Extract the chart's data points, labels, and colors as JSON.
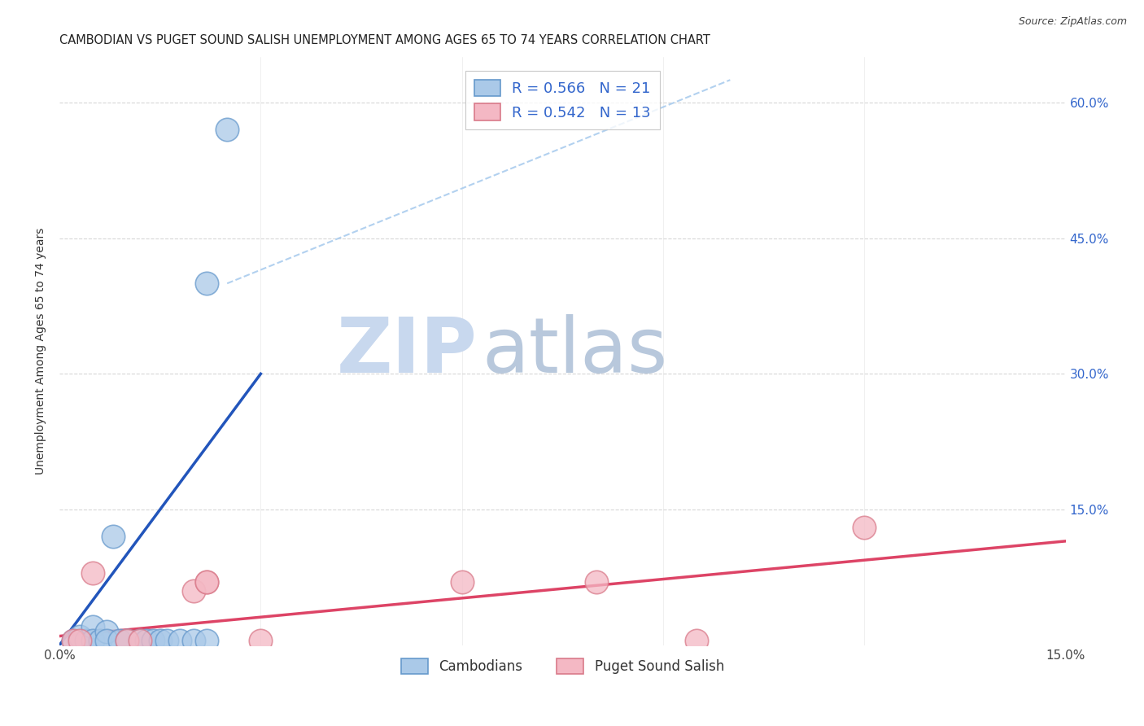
{
  "title": "CAMBODIAN VS PUGET SOUND SALISH UNEMPLOYMENT AMONG AGES 65 TO 74 YEARS CORRELATION CHART",
  "source": "Source: ZipAtlas.com",
  "ylabel": "Unemployment Among Ages 65 to 74 years",
  "xlim": [
    0.0,
    0.15
  ],
  "ylim": [
    0.0,
    0.65
  ],
  "xtick_positions": [
    0.0,
    0.03,
    0.06,
    0.09,
    0.12,
    0.15
  ],
  "xtick_labels": [
    "0.0%",
    "",
    "",
    "",
    "",
    "15.0%"
  ],
  "ytick_positions": [
    0.0,
    0.15,
    0.3,
    0.45,
    0.6
  ],
  "ytick_labels_right": [
    "",
    "15.0%",
    "30.0%",
    "45.0%",
    "60.0%"
  ],
  "cambodian_scatter_x": [
    0.002,
    0.003,
    0.004,
    0.005,
    0.005,
    0.006,
    0.007,
    0.007,
    0.008,
    0.009,
    0.01,
    0.012,
    0.013,
    0.014,
    0.015,
    0.016,
    0.018,
    0.02,
    0.022,
    0.022,
    0.025
  ],
  "cambodian_scatter_y": [
    0.005,
    0.01,
    0.005,
    0.02,
    0.005,
    0.005,
    0.015,
    0.005,
    0.12,
    0.005,
    0.005,
    0.005,
    0.005,
    0.005,
    0.005,
    0.005,
    0.005,
    0.005,
    0.005,
    0.4,
    0.57
  ],
  "puget_scatter_x": [
    0.002,
    0.003,
    0.005,
    0.01,
    0.012,
    0.02,
    0.022,
    0.022,
    0.03,
    0.06,
    0.08,
    0.095,
    0.12
  ],
  "puget_scatter_y": [
    0.005,
    0.005,
    0.08,
    0.005,
    0.005,
    0.06,
    0.07,
    0.07,
    0.005,
    0.07,
    0.07,
    0.005,
    0.13
  ],
  "cambodian_color": "#aac9e8",
  "cambodian_edge_color": "#6699cc",
  "puget_color": "#f4b8c4",
  "puget_edge_color": "#d97a8a",
  "trend_cambodian_color": "#2255bb",
  "trend_puget_color": "#dd4466",
  "trend_dash_color": "#aaccee",
  "R_cambodian": 0.566,
  "N_cambodian": 21,
  "R_puget": 0.542,
  "N_puget": 13,
  "legend_text_color": "#3366cc",
  "watermark_zip": "ZIP",
  "watermark_atlas": "atlas",
  "watermark_color_zip": "#c8d8ee",
  "watermark_color_atlas": "#b8c8dc",
  "background_color": "#ffffff",
  "grid_color": "#cccccc",
  "camb_trend_x": [
    0.0,
    0.03
  ],
  "camb_trend_y": [
    0.0,
    0.3
  ],
  "puget_trend_x": [
    0.0,
    0.15
  ],
  "puget_trend_y": [
    0.01,
    0.115
  ],
  "dash_trend_x": [
    0.025,
    0.1
  ],
  "dash_trend_y": [
    0.4,
    0.625
  ]
}
